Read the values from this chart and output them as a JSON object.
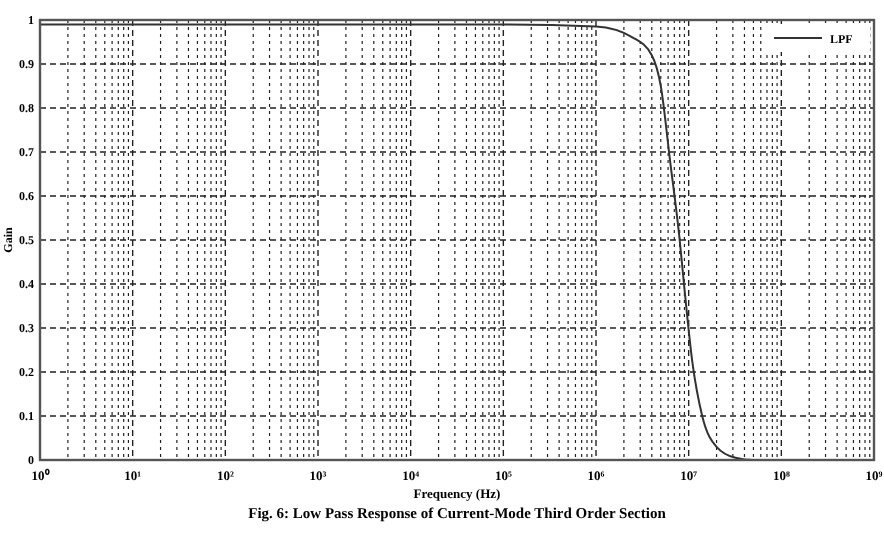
{
  "chart_data": {
    "type": "line",
    "xlabel": "Frequency (Hz)",
    "ylabel": "Gain",
    "log": "x",
    "grid": true,
    "legend": "top right",
    "marker": "none",
    "line_style": "solid",
    "annotations": [
      "Fig. 6: Low Pass Response of Current-Mode Third Order Section"
    ],
    "xlim": [
      1,
      1000000000
    ],
    "ylim": [
      0,
      1
    ],
    "xticks": [
      {
        "value": 1,
        "label": "10⁰"
      },
      {
        "value": 10,
        "label": "10¹"
      },
      {
        "value": 100,
        "label": "10²"
      },
      {
        "value": 1000,
        "label": "10³"
      },
      {
        "value": 10000,
        "label": "10⁴"
      },
      {
        "value": 100000,
        "label": "10⁵"
      },
      {
        "value": 1000000,
        "label": "10⁶"
      },
      {
        "value": 10000000,
        "label": "10⁷"
      },
      {
        "value": 100000000,
        "label": "10⁸"
      },
      {
        "value": 1000000000,
        "label": "10⁹"
      }
    ],
    "yticks": [
      0,
      0.1,
      0.2,
      0.3,
      0.4,
      0.5,
      0.6,
      0.7,
      0.8,
      0.9,
      1
    ],
    "x": [
      1,
      100000,
      1000000,
      2500000,
      4000000,
      5000000,
      6300000,
      8000000,
      8900000,
      11000000,
      14000000,
      20000000,
      32000000,
      50000000,
      1000000000
    ],
    "series": [
      {
        "name": "LPF",
        "color": "#333333",
        "values": [
          0.99,
          0.99,
          0.985,
          0.96,
          0.92,
          0.85,
          0.68,
          0.5,
          0.4,
          0.22,
          0.1,
          0.03,
          0.005,
          0,
          0
        ]
      }
    ]
  }
}
